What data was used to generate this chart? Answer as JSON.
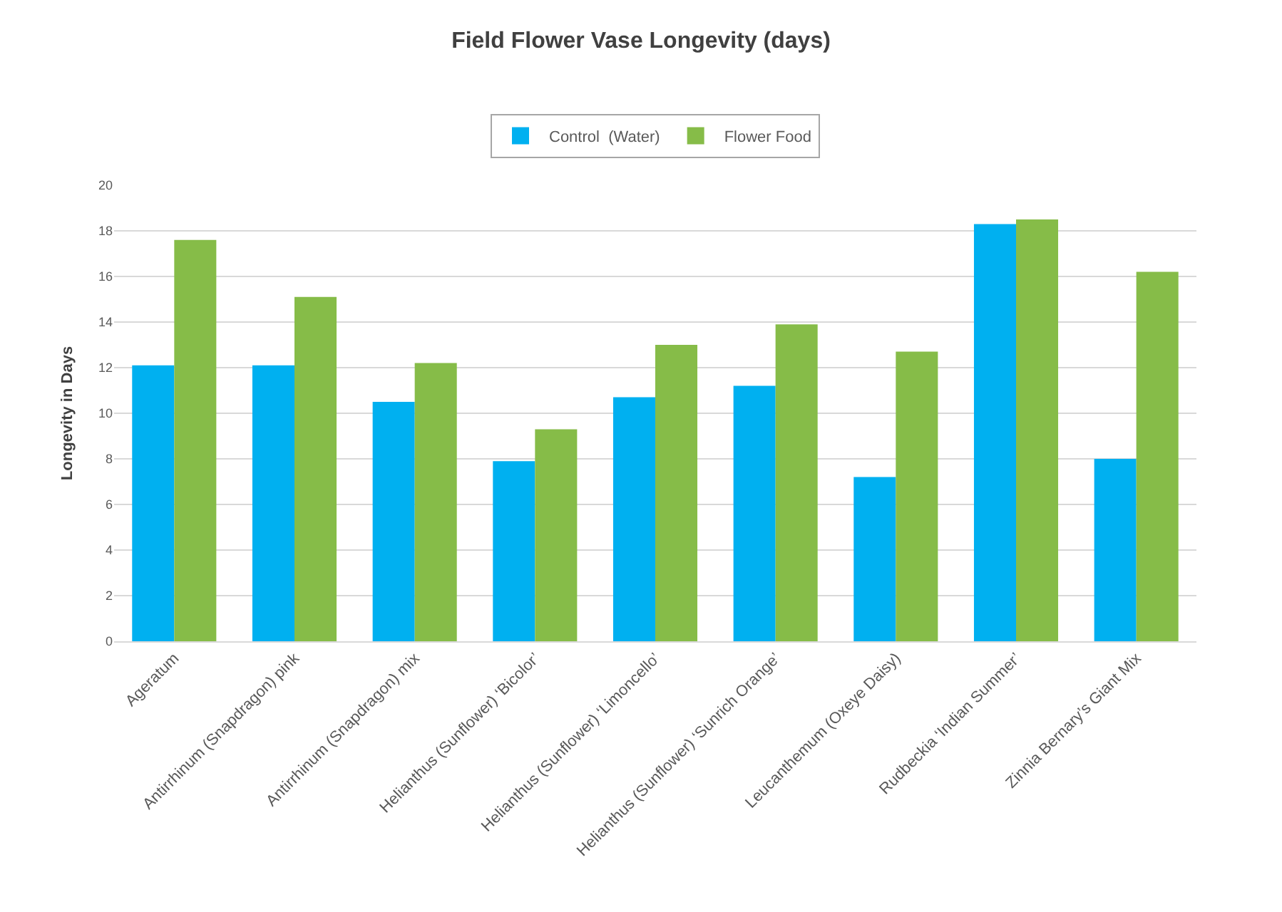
{
  "chart_data": {
    "type": "bar",
    "title": "Field Flower Vase Longevity (days)",
    "ylabel": "Longevity in Days",
    "categories": [
      "Ageratum",
      "Antirrhinum (Snapdragon) pink",
      "Antirrhinum (Snapdragon) mix",
      "Helianthus (Sunflower) ‘Bicolor’",
      "Helianthus (Sunflower) ‘Limoncello’",
      "Helianthus (Sunflower) ‘Sunrich Orange’",
      "Leucanthemum (Oxeye Daisy)",
      "Rudbeckia ‘Indian Summer’",
      "Zinnia Bernary’s Giant Mix"
    ],
    "series": [
      {
        "name": "Control  (Water)",
        "color": "#00b0f0",
        "values": [
          12.1,
          12.1,
          10.5,
          7.9,
          10.7,
          11.2,
          7.2,
          18.3,
          8.0
        ]
      },
      {
        "name": "Flower Food",
        "color": "#86bc48",
        "values": [
          17.6,
          15.1,
          12.2,
          9.3,
          13.0,
          13.9,
          12.7,
          18.5,
          16.2
        ]
      }
    ],
    "ylim": [
      0,
      20
    ],
    "yticks": [
      0,
      2,
      4,
      6,
      8,
      10,
      12,
      14,
      16,
      18,
      20
    ],
    "grid": "y",
    "legend": "top"
  }
}
